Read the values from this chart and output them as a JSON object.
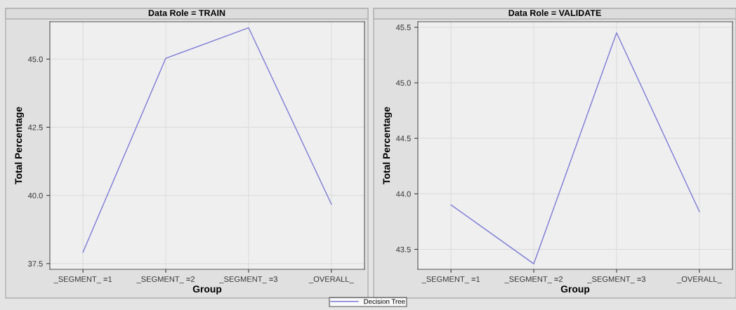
{
  "chart_data": [
    {
      "type": "line",
      "title": "Data Role = TRAIN",
      "xlabel": "Group",
      "ylabel": "Total Percentage",
      "categories": [
        "_SEGMENT_ =1",
        "_SEGMENT_ =2",
        "_SEGMENT_ =3",
        "_OVERALL_"
      ],
      "series": [
        {
          "name": "Decision Tree",
          "color": "#7b7bd6",
          "values": [
            37.92,
            45.03,
            46.15,
            39.68
          ]
        }
      ],
      "ylim": [
        37.29,
        46.37
      ],
      "yticks": [
        37.5,
        {
          "value": 40,
          "label": "40.0"
        },
        42.5,
        {
          "value": 45,
          "label": "45.0"
        }
      ],
      "grid": true,
      "legend": "bottom",
      "marker": "none"
    },
    {
      "type": "line",
      "title": "Data Role = VALIDATE",
      "xlabel": "Group",
      "ylabel": "Total Percentage",
      "categories": [
        "_SEGMENT_ =1",
        "_SEGMENT_ =2",
        "_SEGMENT_ =3",
        "_OVERALL_"
      ],
      "series": [
        {
          "name": "Decision Tree",
          "color": "#7b7bd6",
          "values": [
            43.9,
            43.37,
            45.45,
            43.84
          ]
        }
      ],
      "ylim": [
        43.32,
        45.55
      ],
      "yticks": [
        43.5,
        {
          "value": 44,
          "label": "44.0"
        },
        44.5,
        {
          "value": 45,
          "label": "45.0"
        },
        45.5
      ],
      "grid": true,
      "marker": "none"
    }
  ]
}
